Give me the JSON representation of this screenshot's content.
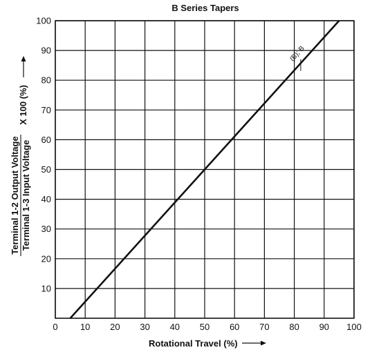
{
  "chart_data": {
    "type": "line",
    "title": "B Series Tapers",
    "xlabel": "Rotational Travel (%)",
    "ylabel_numerator": "Terminal 1-2 Output Voltage",
    "ylabel_denominator": "Terminal 1-3 Input Voltage",
    "ylabel_multiplier": "X 100 (%)",
    "xlim": [
      0,
      100
    ],
    "ylim": [
      0,
      100
    ],
    "grid": true,
    "xticks": [
      0,
      10,
      20,
      30,
      40,
      50,
      60,
      70,
      80,
      90,
      100
    ],
    "yticks": [
      10,
      20,
      30,
      40,
      50,
      60,
      70,
      80,
      90,
      100
    ],
    "series": [
      {
        "name": "(B); B",
        "x": [
          5,
          95
        ],
        "y": [
          0,
          100
        ]
      }
    ]
  }
}
